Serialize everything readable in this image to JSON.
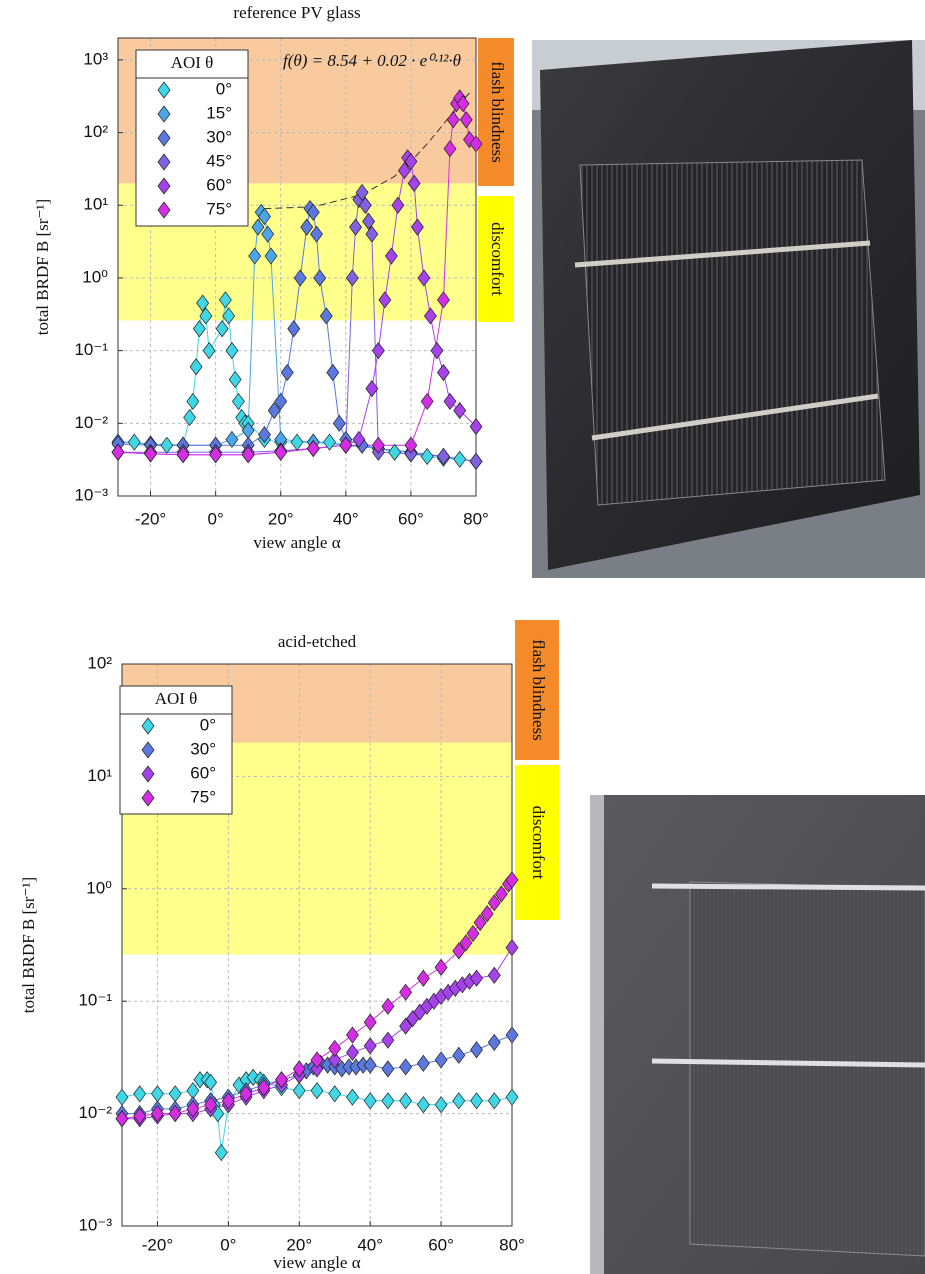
{
  "chart_data": [
    {
      "type": "scatter",
      "title": "reference PV glass",
      "x_label": "view angle α",
      "y_label": "total BRDF B [sr⁻¹]",
      "yscale": "log",
      "grid": true,
      "legend": "upper left",
      "legend_title": "AOI θ",
      "xlim": [
        -30,
        80
      ],
      "ylim": [
        0.001,
        2000
      ],
      "xticks": [
        {
          "value": -20,
          "label": "-20°"
        },
        {
          "value": 0,
          "label": "0°"
        },
        {
          "value": 20,
          "label": "20°"
        },
        {
          "value": 40,
          "label": "40°"
        },
        {
          "value": 60,
          "label": "60°"
        },
        {
          "value": 80,
          "label": "80°"
        }
      ],
      "yticks": [
        {
          "value": 0.001,
          "label": "10⁻³"
        },
        {
          "value": 0.01,
          "label": "10⁻²"
        },
        {
          "value": 0.1,
          "label": "10⁻¹"
        },
        {
          "value": 1,
          "label": "10⁰"
        },
        {
          "value": 10,
          "label": "10¹"
        },
        {
          "value": 100,
          "label": "10²"
        },
        {
          "value": 1000,
          "label": "10³"
        }
      ],
      "bands": [
        {
          "label": "flash blindness",
          "color": "#f58a2a",
          "from": 20
        },
        {
          "label": "discomfort",
          "color": "#ffff00",
          "from": 0.26
        }
      ],
      "annotation": "f(θ) = 8.54 + 0.02 · e⁰·¹²·θ",
      "fit": {
        "color": "#333333",
        "x": [
          15,
          30,
          45,
          55,
          60,
          65,
          70,
          75,
          78
        ],
        "values": [
          9,
          9.5,
          14,
          25,
          40,
          70,
          130,
          250,
          350
        ]
      },
      "series": [
        {
          "name": "0°",
          "color": "#3fd6e6",
          "x": [
            -30,
            -25,
            -20,
            -15,
            -10,
            -8,
            -7,
            -6,
            -5,
            -4,
            -3,
            -2,
            2,
            3,
            4,
            5,
            6,
            7,
            8,
            9,
            10,
            15,
            20,
            25,
            30,
            35,
            40,
            45,
            50,
            55,
            60,
            65,
            70,
            75,
            80
          ],
          "values": [
            0.0055,
            0.0055,
            0.005,
            0.005,
            0.005,
            0.012,
            0.02,
            0.06,
            0.2,
            0.45,
            0.3,
            0.1,
            0.2,
            0.5,
            0.3,
            0.1,
            0.04,
            0.02,
            0.012,
            0.01,
            0.01,
            0.006,
            0.0055,
            0.0055,
            0.0055,
            0.0055,
            0.005,
            0.005,
            0.0045,
            0.004,
            0.0038,
            0.0035,
            0.0033,
            0.0032,
            0.003
          ]
        },
        {
          "name": "15°",
          "color": "#4aa6e8",
          "x": [
            -30,
            -20,
            -10,
            0,
            5,
            10,
            12,
            13,
            14,
            15,
            16,
            17,
            20,
            30,
            40,
            50,
            60,
            70,
            80
          ],
          "values": [
            0.0055,
            0.0052,
            0.005,
            0.005,
            0.006,
            0.008,
            2,
            5,
            8,
            7,
            4,
            2,
            0.006,
            0.0055,
            0.005,
            0.0045,
            0.004,
            0.0035,
            0.003
          ]
        },
        {
          "name": "30°",
          "color": "#5a78de",
          "x": [
            -30,
            -20,
            -10,
            0,
            10,
            15,
            18,
            20,
            22,
            24,
            26,
            28,
            29,
            30,
            31,
            32,
            34,
            36,
            38,
            40,
            45,
            50,
            60,
            70,
            80
          ],
          "values": [
            0.0052,
            0.005,
            0.005,
            0.005,
            0.005,
            0.007,
            0.015,
            0.02,
            0.05,
            0.2,
            1,
            5,
            9,
            8,
            4,
            1,
            0.3,
            0.05,
            0.01,
            0.006,
            0.005,
            0.0045,
            0.004,
            0.0035,
            0.003
          ]
        },
        {
          "name": "45°",
          "color": "#8062e0",
          "x": [
            -30,
            -20,
            -10,
            0,
            10,
            20,
            30,
            40,
            42,
            43,
            44,
            45,
            46,
            47,
            48,
            50,
            60,
            70,
            80
          ],
          "values": [
            0.004,
            0.004,
            0.004,
            0.004,
            0.004,
            0.0042,
            0.0045,
            0.005,
            1,
            5,
            12,
            15,
            10,
            6,
            4,
            0.004,
            0.0038,
            0.0035,
            0.003
          ]
        },
        {
          "name": "60°",
          "color": "#a542ea",
          "x": [
            -30,
            -20,
            -10,
            0,
            10,
            20,
            30,
            40,
            44,
            48,
            50,
            52,
            54,
            56,
            58,
            59,
            60,
            61,
            62,
            64,
            66,
            68,
            70,
            72,
            75,
            80
          ],
          "values": [
            0.004,
            0.0038,
            0.0037,
            0.0037,
            0.0037,
            0.004,
            0.0045,
            0.005,
            0.006,
            0.03,
            0.1,
            0.5,
            2,
            10,
            30,
            45,
            40,
            20,
            5,
            1,
            0.3,
            0.1,
            0.05,
            0.02,
            0.015,
            0.009
          ]
        },
        {
          "name": "75°",
          "color": "#d42ee2",
          "x": [
            -30,
            -20,
            -10,
            0,
            10,
            20,
            30,
            40,
            50,
            60,
            65,
            70,
            72,
            73,
            74,
            75,
            76,
            77,
            78,
            80
          ],
          "values": [
            0.004,
            0.0038,
            0.0037,
            0.0037,
            0.0037,
            0.004,
            0.0045,
            0.005,
            0.005,
            0.005,
            0.02,
            0.5,
            60,
            150,
            250,
            300,
            250,
            150,
            80,
            70
          ]
        }
      ]
    },
    {
      "type": "scatter",
      "title": "acid-etched",
      "x_label": "view angle α",
      "y_label": "total BRDF B [sr⁻¹]",
      "yscale": "log",
      "grid": true,
      "legend": "upper left",
      "legend_title": "AOI θ",
      "xlim": [
        -30,
        80
      ],
      "ylim": [
        0.001,
        100
      ],
      "xticks": [
        {
          "value": -20,
          "label": "-20°"
        },
        {
          "value": 0,
          "label": "0°"
        },
        {
          "value": 20,
          "label": "20°"
        },
        {
          "value": 40,
          "label": "40°"
        },
        {
          "value": 60,
          "label": "60°"
        },
        {
          "value": 80,
          "label": "80°"
        }
      ],
      "yticks": [
        {
          "value": 0.001,
          "label": "10⁻³"
        },
        {
          "value": 0.01,
          "label": "10⁻²"
        },
        {
          "value": 0.1,
          "label": "10⁻¹"
        },
        {
          "value": 1,
          "label": "10⁰"
        },
        {
          "value": 10,
          "label": "10¹"
        },
        {
          "value": 100,
          "label": "10²"
        }
      ],
      "bands": [
        {
          "label": "flash blindness",
          "color": "#f58a2a",
          "from": 20
        },
        {
          "label": "discomfort",
          "color": "#ffff00",
          "from": 0.26
        }
      ],
      "series": [
        {
          "name": "0°",
          "color": "#3fd6e6",
          "x": [
            -30,
            -25,
            -20,
            -15,
            -10,
            -8,
            -6,
            -5,
            -4,
            -3,
            -2,
            0,
            3,
            5,
            7,
            9,
            10,
            15,
            20,
            25,
            30,
            35,
            40,
            45,
            50,
            55,
            60,
            65,
            70,
            75,
            80
          ],
          "values": [
            0.014,
            0.015,
            0.015,
            0.015,
            0.016,
            0.02,
            0.02,
            0.019,
            0.012,
            0.01,
            0.0045,
            0.012,
            0.018,
            0.02,
            0.021,
            0.02,
            0.019,
            0.017,
            0.016,
            0.016,
            0.015,
            0.014,
            0.013,
            0.013,
            0.013,
            0.012,
            0.012,
            0.013,
            0.013,
            0.013,
            0.014
          ]
        },
        {
          "name": "30°",
          "color": "#5a78de",
          "x": [
            -30,
            -25,
            -20,
            -15,
            -10,
            -5,
            0,
            5,
            10,
            15,
            20,
            22,
            24,
            26,
            28,
            30,
            32,
            34,
            36,
            38,
            40,
            45,
            50,
            55,
            60,
            65,
            70,
            75,
            80
          ],
          "values": [
            0.01,
            0.01,
            0.011,
            0.011,
            0.012,
            0.013,
            0.014,
            0.016,
            0.018,
            0.02,
            0.022,
            0.024,
            0.026,
            0.028,
            0.027,
            0.026,
            0.025,
            0.026,
            0.026,
            0.027,
            0.027,
            0.025,
            0.026,
            0.028,
            0.03,
            0.033,
            0.037,
            0.043,
            0.05
          ]
        },
        {
          "name": "60°",
          "color": "#a542ea",
          "x": [
            -30,
            -25,
            -20,
            -15,
            -10,
            -5,
            0,
            5,
            10,
            15,
            20,
            25,
            30,
            35,
            40,
            45,
            50,
            52,
            54,
            56,
            58,
            60,
            62,
            64,
            66,
            68,
            70,
            75,
            80
          ],
          "values": [
            0.009,
            0.009,
            0.0095,
            0.01,
            0.01,
            0.011,
            0.012,
            0.014,
            0.016,
            0.018,
            0.022,
            0.025,
            0.03,
            0.035,
            0.04,
            0.045,
            0.06,
            0.07,
            0.08,
            0.09,
            0.1,
            0.11,
            0.12,
            0.13,
            0.14,
            0.15,
            0.16,
            0.17,
            0.3
          ]
        },
        {
          "name": "75°",
          "color": "#d42ee2",
          "x": [
            -30,
            -25,
            -20,
            -15,
            -10,
            -5,
            0,
            5,
            10,
            15,
            20,
            25,
            30,
            35,
            40,
            45,
            50,
            55,
            60,
            65,
            67,
            69,
            71,
            73,
            75,
            77,
            79,
            80
          ],
          "values": [
            0.009,
            0.0095,
            0.01,
            0.01,
            0.011,
            0.012,
            0.013,
            0.015,
            0.017,
            0.02,
            0.025,
            0.03,
            0.038,
            0.05,
            0.065,
            0.09,
            0.12,
            0.16,
            0.2,
            0.28,
            0.33,
            0.4,
            0.5,
            0.6,
            0.75,
            0.9,
            1.1,
            1.2
          ]
        }
      ]
    }
  ]
}
